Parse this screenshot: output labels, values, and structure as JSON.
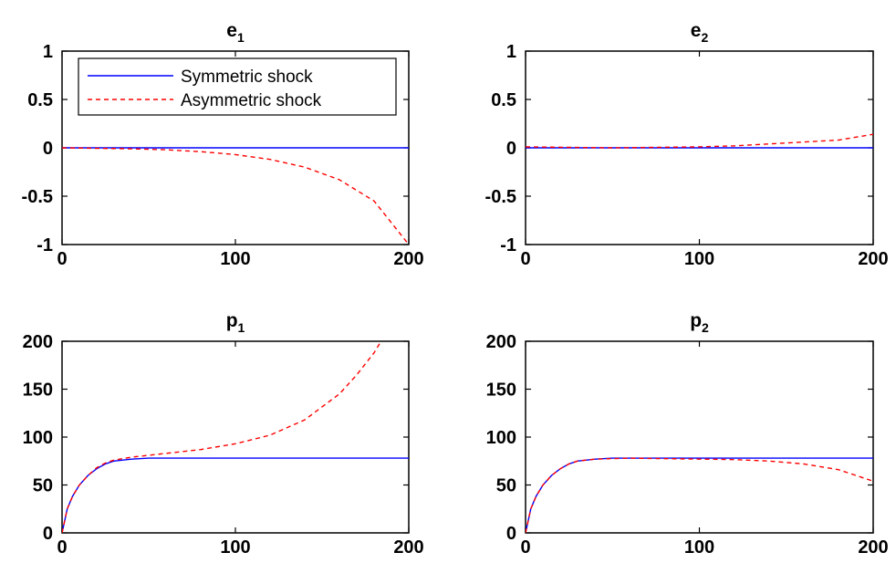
{
  "chart_data": [
    {
      "type": "line",
      "title": "e",
      "title_subscript": "1",
      "xlim": [
        0,
        200
      ],
      "ylim": [
        -1,
        1
      ],
      "xticks": [
        0,
        100,
        200
      ],
      "yticks": [
        -1,
        -0.5,
        0,
        0.5,
        1
      ],
      "legend": "top-left",
      "series": [
        {
          "name": "Symmetric shock",
          "color": "#0000ff",
          "dash": "solid",
          "x": [
            0,
            200
          ],
          "y": [
            0,
            0
          ]
        },
        {
          "name": "Asymmetric shock",
          "color": "#ff0000",
          "dash": "dashed",
          "x": [
            0,
            40,
            60,
            80,
            100,
            120,
            140,
            160,
            180,
            200
          ],
          "y": [
            0,
            -0.01,
            -0.02,
            -0.04,
            -0.07,
            -0.12,
            -0.2,
            -0.33,
            -0.55,
            -1.0
          ]
        }
      ]
    },
    {
      "type": "line",
      "title": "e",
      "title_subscript": "2",
      "xlim": [
        0,
        200
      ],
      "ylim": [
        -1,
        1
      ],
      "xticks": [
        0,
        100,
        200
      ],
      "yticks": [
        -1,
        -0.5,
        0,
        0.5,
        1
      ],
      "series": [
        {
          "name": "Symmetric shock",
          "color": "#0000ff",
          "dash": "solid",
          "x": [
            0,
            200
          ],
          "y": [
            0,
            0
          ]
        },
        {
          "name": "Asymmetric shock",
          "color": "#ff0000",
          "dash": "dashed",
          "x": [
            0,
            50,
            100,
            120,
            140,
            160,
            180,
            200
          ],
          "y": [
            0.01,
            0.0,
            0.01,
            0.02,
            0.04,
            0.06,
            0.08,
            0.14
          ]
        }
      ]
    },
    {
      "type": "line",
      "title": "p",
      "title_subscript": "1",
      "xlim": [
        0,
        200
      ],
      "ylim": [
        0,
        200
      ],
      "xticks": [
        0,
        100,
        200
      ],
      "yticks": [
        0,
        50,
        100,
        150,
        200
      ],
      "series": [
        {
          "name": "Symmetric shock",
          "color": "#0000ff",
          "dash": "solid",
          "x": [
            0,
            3,
            6,
            10,
            15,
            20,
            25,
            30,
            40,
            50,
            60,
            200
          ],
          "y": [
            0,
            25,
            38,
            50,
            60,
            67,
            72,
            75,
            77,
            78,
            78,
            78
          ]
        },
        {
          "name": "Asymmetric shock",
          "color": "#ff0000",
          "dash": "dashed",
          "x": [
            0,
            3,
            6,
            10,
            15,
            20,
            25,
            30,
            40,
            50,
            60,
            80,
            100,
            120,
            140,
            160,
            170,
            180,
            184
          ],
          "y": [
            0,
            25,
            38,
            50,
            60,
            68,
            73,
            76,
            79,
            81,
            83,
            87,
            93,
            102,
            118,
            145,
            165,
            188,
            200
          ]
        }
      ]
    },
    {
      "type": "line",
      "title": "p",
      "title_subscript": "2",
      "xlim": [
        0,
        200
      ],
      "ylim": [
        0,
        200
      ],
      "xticks": [
        0,
        100,
        200
      ],
      "yticks": [
        0,
        50,
        100,
        150,
        200
      ],
      "series": [
        {
          "name": "Symmetric shock",
          "color": "#0000ff",
          "dash": "solid",
          "x": [
            0,
            3,
            6,
            10,
            15,
            20,
            25,
            30,
            40,
            50,
            60,
            200
          ],
          "y": [
            0,
            25,
            38,
            50,
            60,
            67,
            72,
            75,
            77,
            78,
            78,
            78
          ]
        },
        {
          "name": "Asymmetric shock",
          "color": "#ff0000",
          "dash": "dashed",
          "x": [
            0,
            3,
            6,
            10,
            15,
            20,
            25,
            30,
            40,
            60,
            80,
            100,
            120,
            140,
            160,
            180,
            200
          ],
          "y": [
            0,
            25,
            38,
            50,
            60,
            67,
            72,
            75,
            77,
            78,
            77.5,
            77,
            76.5,
            75,
            72,
            66,
            54
          ]
        }
      ]
    }
  ]
}
